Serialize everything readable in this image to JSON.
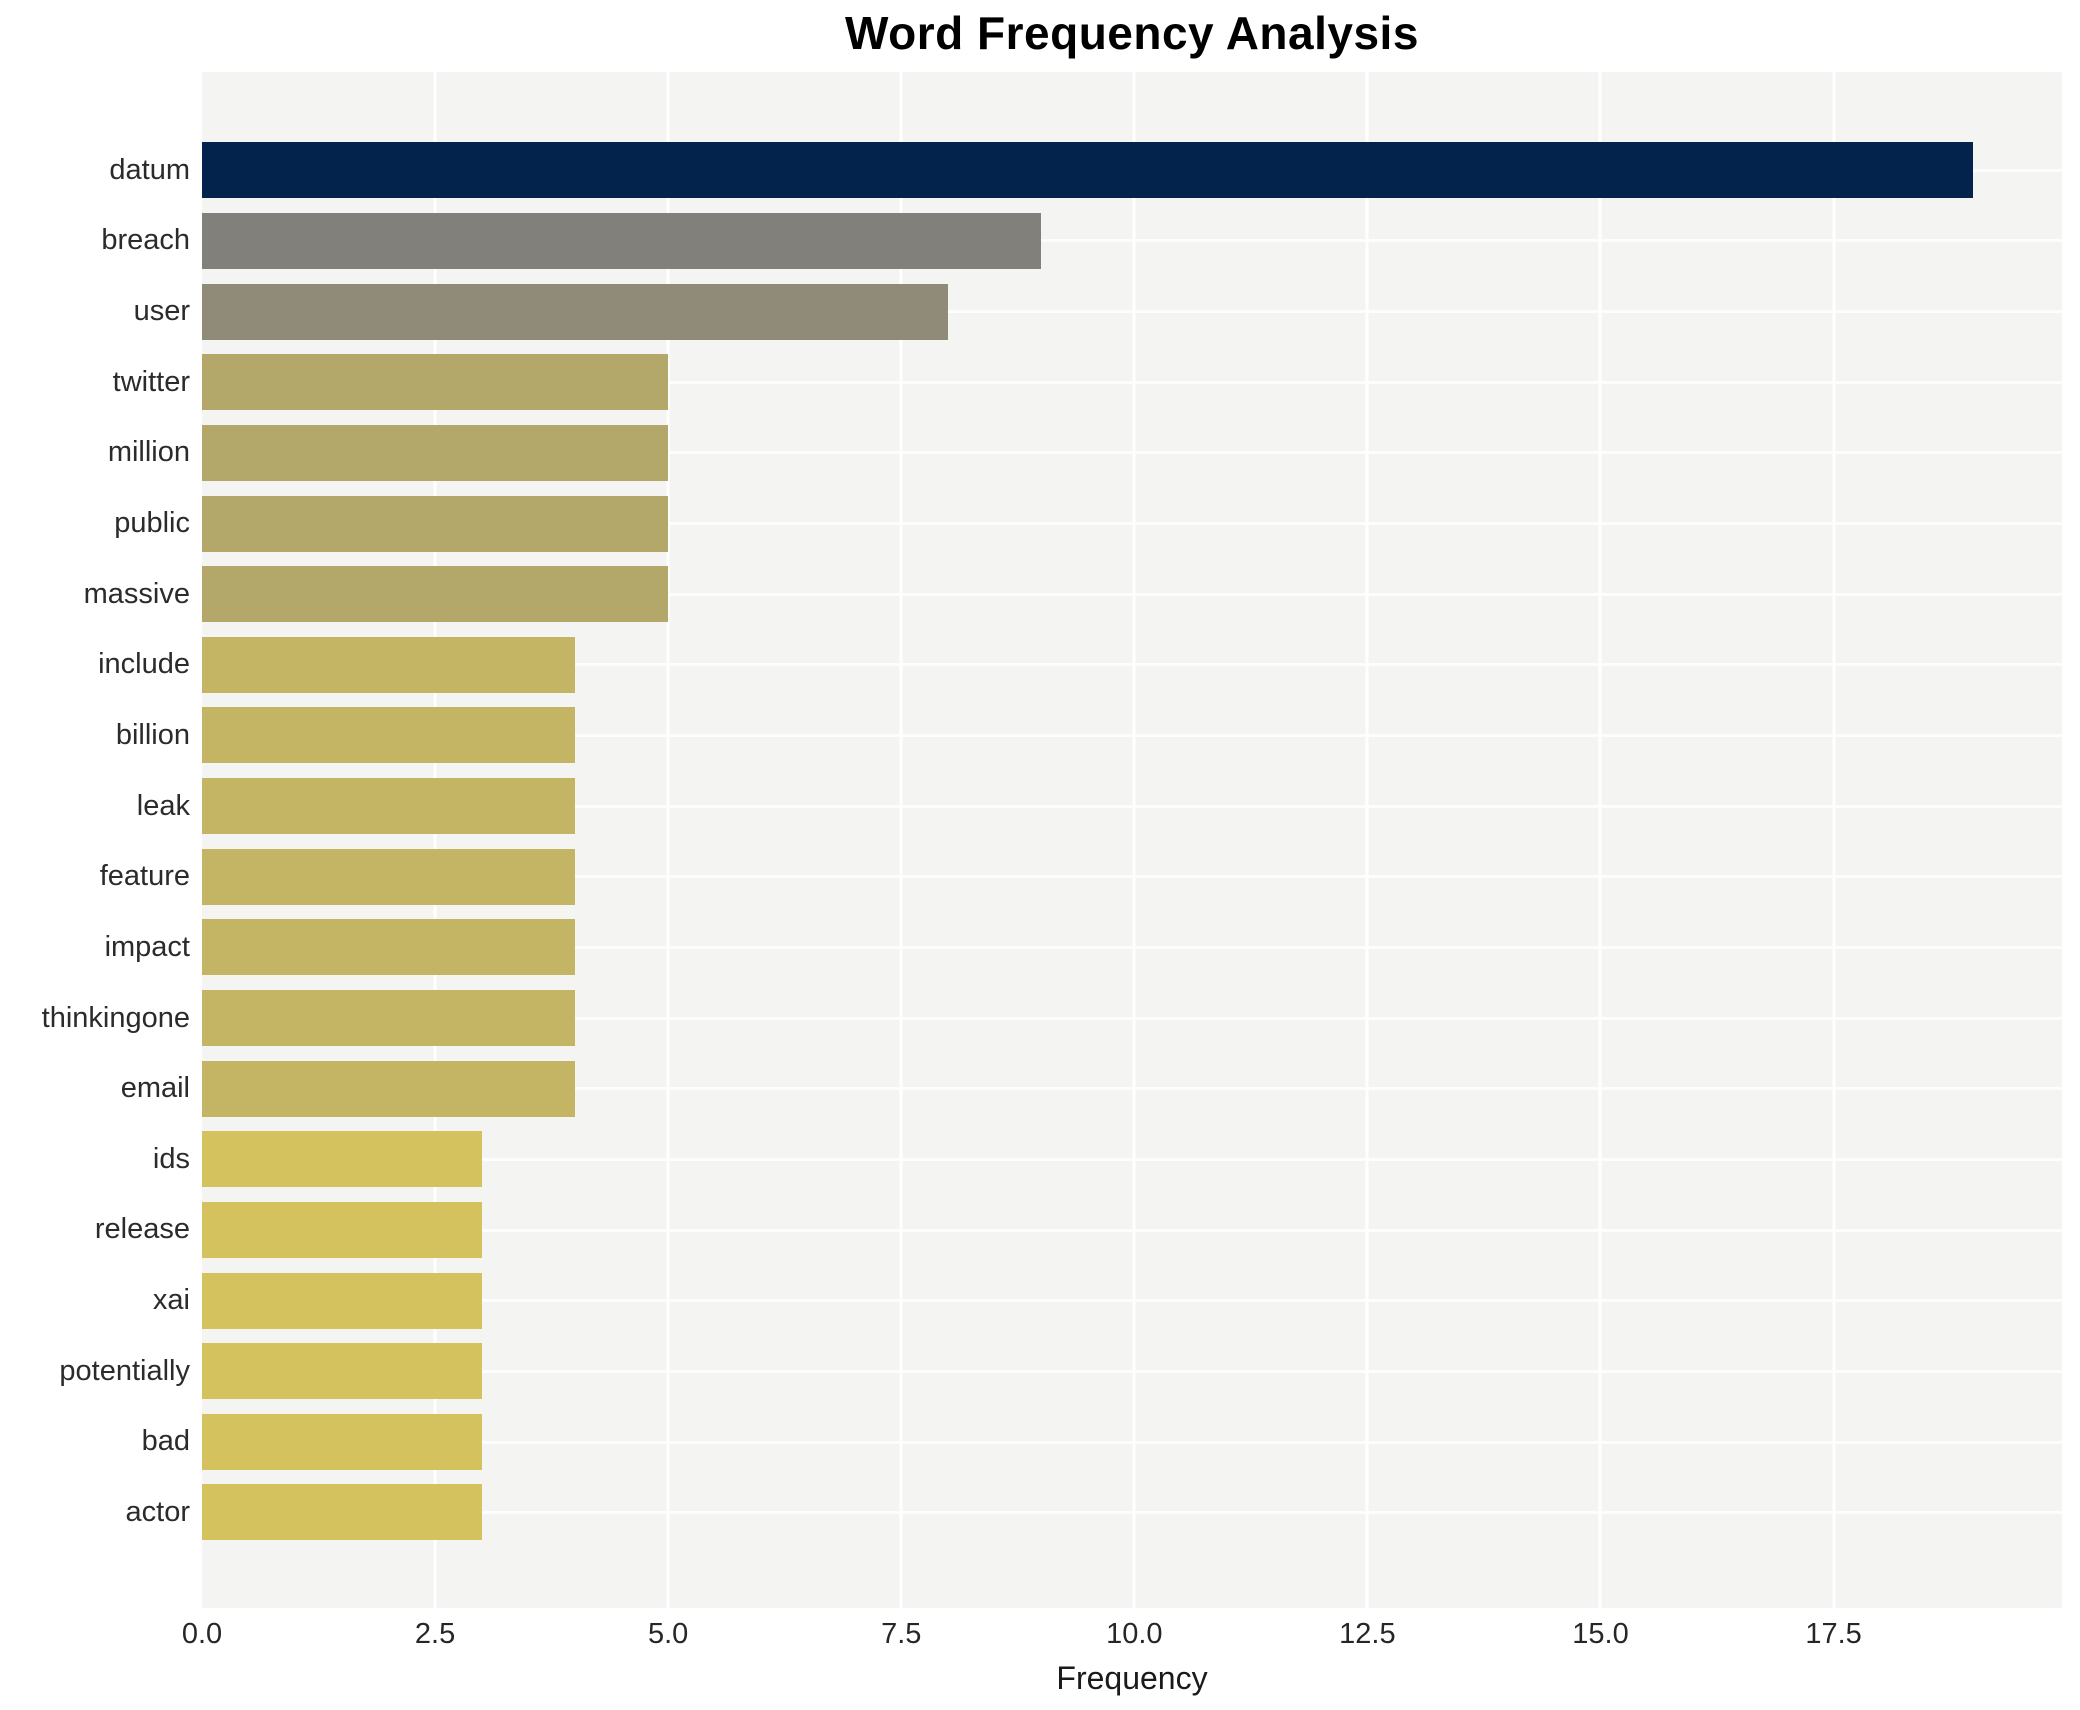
{
  "title": "Word Frequency Analysis",
  "colors": {
    "plot_background": "#f4f4f2",
    "gridline": "#ffffff",
    "title_text": "#000000",
    "axis_text": "#262626",
    "label_text": "#2b2b2b"
  },
  "chart_data": {
    "type": "bar",
    "orientation": "horizontal",
    "title": "Word Frequency Analysis",
    "xlabel": "Frequency",
    "ylabel": "",
    "xlim": [
      0,
      19.95
    ],
    "xticks": [
      0.0,
      2.5,
      5.0,
      7.5,
      10.0,
      12.5,
      15.0,
      17.5
    ],
    "xtick_labels": [
      "0.0",
      "2.5",
      "5.0",
      "7.5",
      "10.0",
      "12.5",
      "15.0",
      "17.5"
    ],
    "grid": true,
    "legend": false,
    "categories": [
      "datum",
      "breach",
      "user",
      "twitter",
      "million",
      "public",
      "massive",
      "include",
      "billion",
      "leak",
      "feature",
      "impact",
      "thinkingone",
      "email",
      "ids",
      "release",
      "xai",
      "potentially",
      "bad",
      "actor"
    ],
    "values": [
      19,
      9,
      8,
      5,
      5,
      5,
      5,
      4,
      4,
      4,
      4,
      4,
      4,
      4,
      3,
      3,
      3,
      3,
      3,
      3
    ],
    "bar_colors": [
      "#03224c",
      "#81807a",
      "#908a79",
      "#b3a76a",
      "#b3a76a",
      "#b3a76a",
      "#b3a76a",
      "#c4b565",
      "#c4b565",
      "#c4b565",
      "#c4b565",
      "#c4b565",
      "#c4b565",
      "#c4b565",
      "#d3c25e",
      "#d3c25e",
      "#d3c25e",
      "#d3c25e",
      "#d3c25e",
      "#d3c25e"
    ]
  }
}
